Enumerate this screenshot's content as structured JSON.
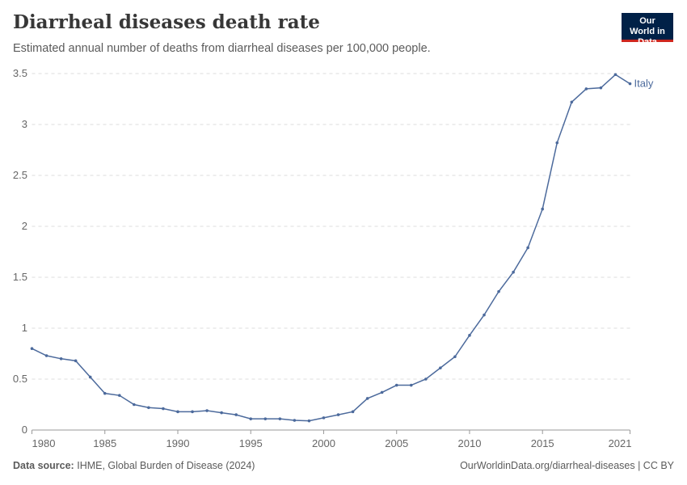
{
  "header": {
    "title": "Diarrheal diseases death rate",
    "subtitle": "Estimated annual number of deaths from diarrheal diseases per 100,000 people.",
    "logo_text": "Our World in Data"
  },
  "footer": {
    "source_label": "Data source:",
    "source": "IHME, Global Burden of Disease (2024)",
    "url": "OurWorldinData.org/diarrheal-diseases | CC BY"
  },
  "colors": {
    "series": "#4c6a9c",
    "logo_bg": "#002147",
    "logo_accent": "#ce261e"
  },
  "chart_data": {
    "type": "line",
    "title": "Diarrheal diseases death rate",
    "xlabel": "",
    "ylabel": "",
    "xlim": [
      1980,
      2021
    ],
    "ylim": [
      0,
      3.5
    ],
    "grid": "horizontal-dashed",
    "legend": "line-end label",
    "x_ticks": [
      "1980",
      "1985",
      "1990",
      "1995",
      "2000",
      "2005",
      "2010",
      "2015",
      "2021"
    ],
    "y_ticks": [
      "0",
      "0.5",
      "1",
      "1.5",
      "2",
      "2.5",
      "3",
      "3.5"
    ],
    "x": [
      1980,
      1981,
      1982,
      1983,
      1984,
      1985,
      1986,
      1987,
      1988,
      1989,
      1990,
      1991,
      1992,
      1993,
      1994,
      1995,
      1996,
      1997,
      1998,
      1999,
      2000,
      2001,
      2002,
      2003,
      2004,
      2005,
      2006,
      2007,
      2008,
      2009,
      2010,
      2011,
      2012,
      2013,
      2014,
      2015,
      2016,
      2017,
      2018,
      2019,
      2020,
      2021
    ],
    "series": [
      {
        "name": "Italy",
        "values": [
          0.8,
          0.73,
          0.7,
          0.68,
          0.52,
          0.36,
          0.34,
          0.25,
          0.22,
          0.21,
          0.18,
          0.18,
          0.19,
          0.17,
          0.15,
          0.11,
          0.11,
          0.11,
          0.095,
          0.09,
          0.12,
          0.15,
          0.18,
          0.31,
          0.37,
          0.44,
          0.44,
          0.5,
          0.61,
          0.72,
          0.93,
          1.13,
          1.36,
          1.55,
          1.79,
          2.17,
          2.82,
          3.22,
          3.35,
          3.36,
          3.49,
          3.4
        ]
      }
    ]
  }
}
